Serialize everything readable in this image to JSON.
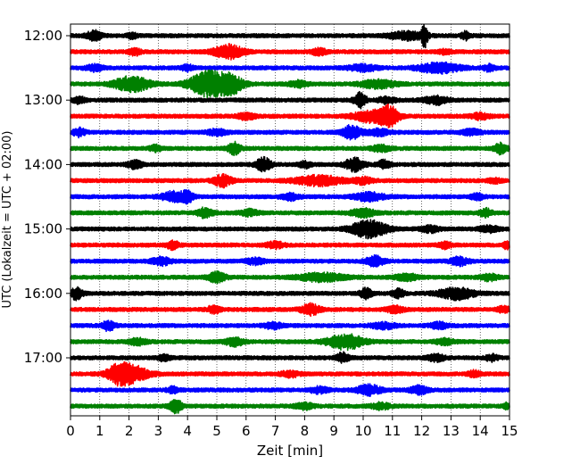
{
  "chart_data": {
    "type": "line",
    "title": "",
    "xlabel": "Zeit  [min]",
    "ylabel": "UTC (Lokalzeit = UTC + 02:00)",
    "xlim": [
      0,
      15
    ],
    "x_ticks": [
      0,
      1,
      2,
      3,
      4,
      5,
      6,
      7,
      8,
      9,
      10,
      11,
      12,
      13,
      14,
      15
    ],
    "y_tick_labels": [
      "12:00",
      "13:00",
      "14:00",
      "15:00",
      "16:00",
      "17:00"
    ],
    "y_tick_rows": [
      0,
      4,
      8,
      12,
      16,
      20
    ],
    "grid": "vertical dotted",
    "colors": [
      "#000000",
      "#ff0000",
      "#0000ff",
      "#008000"
    ],
    "traces": [
      {
        "start": "12:00",
        "color": "#000000",
        "bursts": [
          [
            0.8,
            0.25,
            5
          ],
          [
            2.1,
            0.15,
            3
          ],
          [
            11.5,
            0.6,
            4
          ],
          [
            12.1,
            0.1,
            11
          ],
          [
            13.5,
            0.15,
            4
          ]
        ]
      },
      {
        "start": "12:15",
        "color": "#ff0000",
        "bursts": [
          [
            5.4,
            0.5,
            7
          ],
          [
            2.2,
            0.2,
            3
          ],
          [
            8.5,
            0.25,
            3
          ],
          [
            12.8,
            0.2,
            2
          ]
        ]
      },
      {
        "start": "12:30",
        "color": "#0000ff",
        "bursts": [
          [
            0.8,
            0.3,
            3
          ],
          [
            4.0,
            0.2,
            3
          ],
          [
            10.0,
            0.5,
            3
          ],
          [
            12.6,
            0.7,
            5
          ],
          [
            14.3,
            0.2,
            3
          ]
        ]
      },
      {
        "start": "12:45",
        "color": "#008000",
        "bursts": [
          [
            2.1,
            0.6,
            8
          ],
          [
            4.7,
            0.6,
            14
          ],
          [
            5.5,
            0.4,
            9
          ],
          [
            7.8,
            0.3,
            3
          ],
          [
            10.5,
            0.6,
            4
          ]
        ]
      },
      {
        "start": "13:00",
        "color": "#000000",
        "bursts": [
          [
            0.3,
            0.2,
            3
          ],
          [
            9.9,
            0.2,
            8
          ],
          [
            12.5,
            0.4,
            4
          ],
          [
            10.8,
            0.3,
            3
          ]
        ]
      },
      {
        "start": "13:15",
        "color": "#ff0000",
        "bursts": [
          [
            6.0,
            0.3,
            3
          ],
          [
            10.3,
            0.6,
            6
          ],
          [
            10.9,
            0.3,
            9
          ],
          [
            14.0,
            0.3,
            3
          ]
        ]
      },
      {
        "start": "13:30",
        "color": "#0000ff",
        "bursts": [
          [
            0.3,
            0.2,
            4
          ],
          [
            5.0,
            0.3,
            3
          ],
          [
            9.6,
            0.3,
            7
          ],
          [
            10.5,
            0.4,
            3
          ],
          [
            13.7,
            0.3,
            3
          ]
        ]
      },
      {
        "start": "13:45",
        "color": "#008000",
        "bursts": [
          [
            2.9,
            0.2,
            3
          ],
          [
            5.6,
            0.2,
            6
          ],
          [
            14.7,
            0.2,
            6
          ],
          [
            10.6,
            0.3,
            3
          ]
        ]
      },
      {
        "start": "14:00",
        "color": "#000000",
        "bursts": [
          [
            2.2,
            0.25,
            4
          ],
          [
            6.6,
            0.25,
            7
          ],
          [
            9.7,
            0.3,
            7
          ],
          [
            10.7,
            0.2,
            4
          ],
          [
            8.0,
            0.2,
            3
          ]
        ]
      },
      {
        "start": "14:15",
        "color": "#ff0000",
        "bursts": [
          [
            5.2,
            0.3,
            6
          ],
          [
            8.5,
            0.8,
            5
          ],
          [
            10.0,
            0.3,
            3
          ],
          [
            14.5,
            0.2,
            2
          ]
        ]
      },
      {
        "start": "14:30",
        "color": "#0000ff",
        "bursts": [
          [
            3.5,
            0.4,
            5
          ],
          [
            4.0,
            0.2,
            5
          ],
          [
            10.2,
            0.5,
            4
          ],
          [
            7.5,
            0.3,
            3
          ],
          [
            13.9,
            0.2,
            3
          ]
        ]
      },
      {
        "start": "14:45",
        "color": "#008000",
        "bursts": [
          [
            4.6,
            0.25,
            5
          ],
          [
            6.1,
            0.3,
            3
          ],
          [
            10.0,
            0.4,
            4
          ],
          [
            14.2,
            0.2,
            4
          ]
        ]
      },
      {
        "start": "15:00",
        "color": "#000000",
        "bursts": [
          [
            10.2,
            0.6,
            9
          ],
          [
            12.3,
            0.3,
            3
          ],
          [
            14.3,
            0.3,
            3
          ]
        ]
      },
      {
        "start": "15:15",
        "color": "#ff0000",
        "bursts": [
          [
            3.5,
            0.2,
            4
          ],
          [
            7.0,
            0.3,
            3
          ],
          [
            12.8,
            0.2,
            3
          ],
          [
            14.9,
            0.1,
            4
          ]
        ]
      },
      {
        "start": "15:30",
        "color": "#0000ff",
        "bursts": [
          [
            3.1,
            0.3,
            4
          ],
          [
            6.3,
            0.3,
            3
          ],
          [
            10.4,
            0.3,
            5
          ],
          [
            13.3,
            0.3,
            4
          ]
        ]
      },
      {
        "start": "15:45",
        "color": "#008000",
        "bursts": [
          [
            5.0,
            0.3,
            5
          ],
          [
            8.6,
            0.8,
            4
          ],
          [
            11.5,
            0.4,
            3
          ],
          [
            14.3,
            0.3,
            3
          ]
        ]
      },
      {
        "start": "16:00",
        "color": "#000000",
        "bursts": [
          [
            0.2,
            0.2,
            6
          ],
          [
            10.1,
            0.2,
            5
          ],
          [
            11.2,
            0.2,
            4
          ],
          [
            13.2,
            0.6,
            6
          ]
        ]
      },
      {
        "start": "16:15",
        "color": "#ff0000",
        "bursts": [
          [
            4.9,
            0.2,
            4
          ],
          [
            8.2,
            0.3,
            6
          ],
          [
            11.1,
            0.3,
            3
          ],
          [
            14.8,
            0.2,
            3
          ]
        ]
      },
      {
        "start": "16:30",
        "color": "#0000ff",
        "bursts": [
          [
            1.3,
            0.2,
            5
          ],
          [
            6.9,
            0.3,
            3
          ],
          [
            10.7,
            0.4,
            3
          ],
          [
            12.6,
            0.3,
            3
          ]
        ]
      },
      {
        "start": "16:45",
        "color": "#008000",
        "bursts": [
          [
            2.3,
            0.3,
            3
          ],
          [
            5.6,
            0.3,
            4
          ],
          [
            9.4,
            0.6,
            8
          ],
          [
            12.8,
            0.3,
            3
          ]
        ]
      },
      {
        "start": "17:00",
        "color": "#000000",
        "bursts": [
          [
            3.2,
            0.2,
            3
          ],
          [
            9.3,
            0.2,
            5
          ],
          [
            12.5,
            0.3,
            3
          ],
          [
            14.4,
            0.2,
            3
          ]
        ]
      },
      {
        "start": "17:15",
        "color": "#ff0000",
        "bursts": [
          [
            2.0,
            0.6,
            10
          ],
          [
            1.6,
            0.3,
            5
          ],
          [
            7.5,
            0.3,
            3
          ],
          [
            13.8,
            0.2,
            3
          ]
        ]
      },
      {
        "start": "17:30",
        "color": "#0000ff",
        "bursts": [
          [
            3.5,
            0.2,
            3
          ],
          [
            8.5,
            0.3,
            3
          ],
          [
            10.2,
            0.4,
            5
          ],
          [
            11.9,
            0.3,
            4
          ]
        ]
      },
      {
        "start": "17:45",
        "color": "#008000",
        "bursts": [
          [
            3.6,
            0.2,
            7
          ],
          [
            8.0,
            0.3,
            3
          ],
          [
            10.6,
            0.3,
            3
          ],
          [
            14.9,
            0.1,
            3
          ]
        ]
      }
    ]
  }
}
